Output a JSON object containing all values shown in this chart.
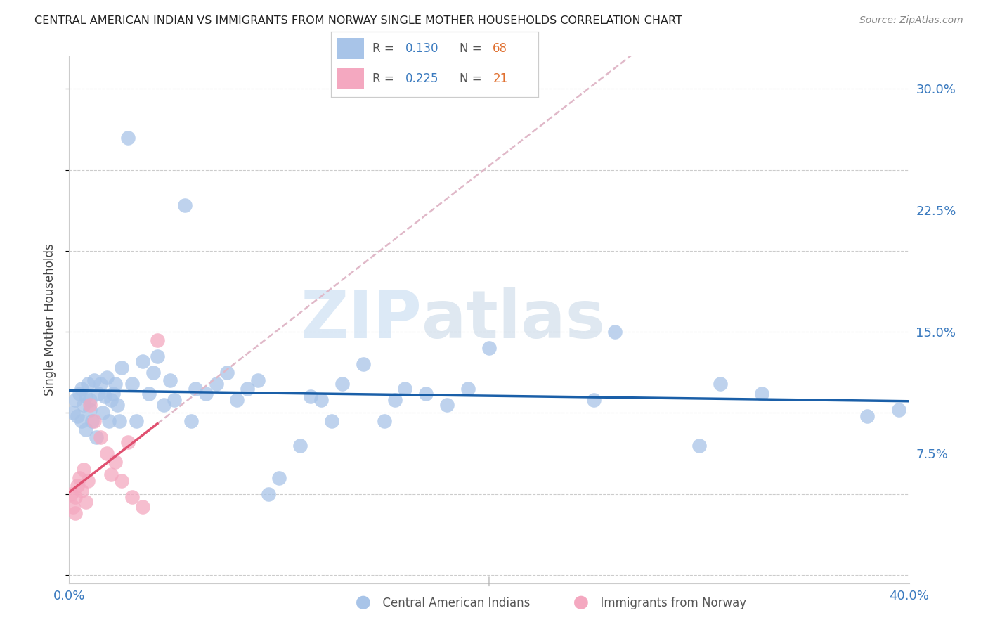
{
  "title": "CENTRAL AMERICAN INDIAN VS IMMIGRANTS FROM NORWAY SINGLE MOTHER HOUSEHOLDS CORRELATION CHART",
  "source": "Source: ZipAtlas.com",
  "ylabel": "Single Mother Households",
  "xlim": [
    0.0,
    0.4
  ],
  "ylim": [
    -0.005,
    0.32
  ],
  "xticks": [
    0.0,
    0.1,
    0.2,
    0.3,
    0.4
  ],
  "xticklabels": [
    "0.0%",
    "",
    "",
    "",
    "40.0%"
  ],
  "ytick_positions": [
    0.075,
    0.15,
    0.225,
    0.3
  ],
  "yticklabels": [
    "7.5%",
    "15.0%",
    "22.5%",
    "30.0%"
  ],
  "blue_R": 0.13,
  "blue_N": 68,
  "pink_R": 0.225,
  "pink_N": 21,
  "blue_color": "#a8c4e8",
  "pink_color": "#f4a8c0",
  "blue_line_color": "#1a5fa8",
  "pink_line_color": "#e05070",
  "pink_dash_color": "#e0b8c8",
  "watermark_zip": "ZIP",
  "watermark_atlas": "atlas",
  "blue_scatter_x": [
    0.002,
    0.003,
    0.004,
    0.005,
    0.006,
    0.006,
    0.007,
    0.008,
    0.008,
    0.009,
    0.01,
    0.01,
    0.011,
    0.012,
    0.013,
    0.014,
    0.015,
    0.016,
    0.017,
    0.018,
    0.019,
    0.02,
    0.021,
    0.022,
    0.023,
    0.024,
    0.025,
    0.028,
    0.03,
    0.032,
    0.035,
    0.038,
    0.04,
    0.042,
    0.045,
    0.048,
    0.05,
    0.055,
    0.058,
    0.06,
    0.065,
    0.07,
    0.075,
    0.08,
    0.085,
    0.09,
    0.095,
    0.1,
    0.11,
    0.115,
    0.12,
    0.125,
    0.13,
    0.14,
    0.15,
    0.155,
    0.16,
    0.17,
    0.18,
    0.19,
    0.2,
    0.25,
    0.26,
    0.3,
    0.31,
    0.33,
    0.38,
    0.395
  ],
  "blue_scatter_y": [
    0.1,
    0.108,
    0.098,
    0.112,
    0.095,
    0.115,
    0.105,
    0.11,
    0.09,
    0.118,
    0.108,
    0.102,
    0.095,
    0.12,
    0.085,
    0.112,
    0.118,
    0.1,
    0.11,
    0.122,
    0.095,
    0.108,
    0.112,
    0.118,
    0.105,
    0.095,
    0.128,
    0.27,
    0.118,
    0.095,
    0.132,
    0.112,
    0.125,
    0.135,
    0.105,
    0.12,
    0.108,
    0.228,
    0.095,
    0.115,
    0.112,
    0.118,
    0.125,
    0.108,
    0.115,
    0.12,
    0.05,
    0.06,
    0.08,
    0.11,
    0.108,
    0.095,
    0.118,
    0.13,
    0.095,
    0.108,
    0.115,
    0.112,
    0.105,
    0.115,
    0.14,
    0.108,
    0.15,
    0.08,
    0.118,
    0.112,
    0.098,
    0.102
  ],
  "pink_scatter_x": [
    0.001,
    0.002,
    0.003,
    0.003,
    0.004,
    0.005,
    0.006,
    0.007,
    0.008,
    0.009,
    0.01,
    0.012,
    0.015,
    0.018,
    0.02,
    0.022,
    0.025,
    0.028,
    0.03,
    0.035,
    0.042
  ],
  "pink_scatter_y": [
    0.05,
    0.042,
    0.038,
    0.048,
    0.055,
    0.06,
    0.052,
    0.065,
    0.045,
    0.058,
    0.105,
    0.095,
    0.085,
    0.075,
    0.062,
    0.07,
    0.058,
    0.082,
    0.048,
    0.042,
    0.145
  ]
}
